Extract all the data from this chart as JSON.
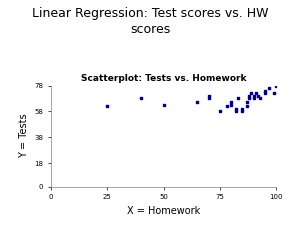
{
  "title": "Linear Regression: Test scores vs. HW\nscores",
  "subtitle": "Scatterplot: Tests vs. Homework",
  "xlabel": "X = Homework",
  "ylabel": "Y = Tests",
  "title_fontsize": 9,
  "subtitle_fontsize": 6.5,
  "label_fontsize": 7,
  "tick_fontsize": 5,
  "dot_color": "#00008B",
  "dot_size": 4,
  "xlim": [
    0,
    100
  ],
  "ylim": [
    0,
    78
  ],
  "xticks": [
    0,
    25,
    50,
    75,
    100
  ],
  "yticks": [
    0,
    18,
    38,
    58,
    78
  ],
  "hw_scores": [
    25,
    40,
    50,
    65,
    70,
    70,
    75,
    78,
    80,
    80,
    82,
    82,
    83,
    85,
    85,
    87,
    87,
    88,
    88,
    89,
    90,
    90,
    91,
    92,
    93,
    95,
    95,
    97,
    99,
    100
  ],
  "test_scores": [
    62,
    68,
    63,
    65,
    68,
    70,
    58,
    62,
    63,
    65,
    58,
    60,
    68,
    58,
    60,
    62,
    65,
    68,
    70,
    72,
    68,
    70,
    72,
    70,
    68,
    72,
    74,
    76,
    72,
    78
  ]
}
